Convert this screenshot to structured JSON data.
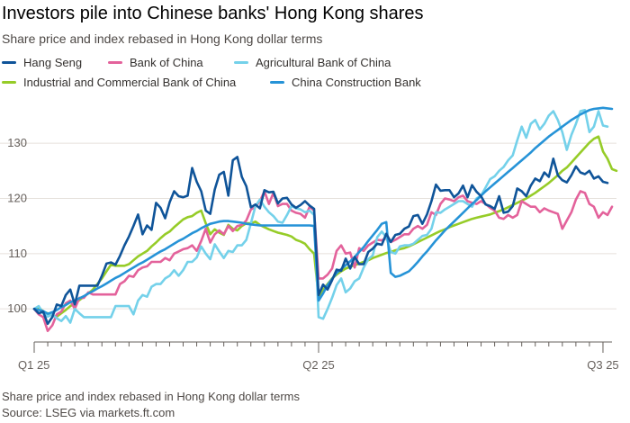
{
  "title": "Investors pile into Chinese banks' Hong Kong shares",
  "subtitle": "Share price and index rebased in Hong Kong dollar terms",
  "footer": {
    "note": "Share price and index rebased in Hong Kong dollar terms",
    "source": "Source: LSEG via markets.ft.com"
  },
  "chart_data": {
    "type": "line",
    "legend_placement": "top",
    "grid": "horizontal",
    "ylim": [
      94,
      138
    ],
    "yticks": [
      100,
      110,
      120,
      130
    ],
    "xticks": [
      {
        "label": "Q1 25",
        "x": 0
      },
      {
        "label": "Q2 25",
        "x": 63
      },
      {
        "label": "Q3 25",
        "x": 126
      }
    ],
    "xlim": [
      0,
      128
    ],
    "series": [
      {
        "name": "Hang Seng",
        "color": "#0f5499",
        "values": [
          100,
          99.2,
          99.5,
          97.3,
          98.5,
          100.8,
          100.5,
          102.5,
          103.5,
          100.8,
          104.2,
          104.2,
          104.2,
          104.2,
          104.2,
          106,
          108.2,
          108.4,
          108,
          109.6,
          111.5,
          113.1,
          115,
          117.1,
          113.5,
          115.1,
          114.3,
          119.2,
          118.3,
          116.4,
          119.3,
          121.3,
          120.4,
          120.2,
          120.5,
          125.5,
          123,
          121.3,
          117.8,
          117.2,
          121.6,
          124.3,
          124.8,
          120.5,
          126.9,
          127.5,
          123.9,
          122.2,
          118.4,
          118.9,
          118.2,
          121.5,
          121.1,
          121.2,
          119.1,
          120,
          120.1,
          118.9,
          118.3,
          118.8,
          119.5,
          118.7,
          118.1,
          102.5,
          104.4,
          103.5,
          105.2,
          107.1,
          106.9,
          109.1,
          107.3,
          109.4,
          108.1,
          108.1,
          110.3,
          110.9,
          111.8,
          111.6,
          113.6,
          112.1,
          113.4,
          113.6,
          114.5,
          114.9,
          116.8,
          117,
          115.4,
          117.1,
          119.5,
          122.5,
          121.4,
          121.5,
          121.5,
          120.2,
          120.9,
          122.3,
          120.2,
          122.4,
          121.2,
          120.4,
          118.9,
          118.6,
          118.1,
          120.4,
          117.4,
          117.6,
          118.6,
          121.8,
          121.3,
          120.4,
          122.3,
          123.6,
          123.1,
          124.7,
          123.9,
          127.2,
          124.2,
          123.3,
          122.9,
          124.2,
          125.8,
          124.7,
          124.4,
          125,
          123.6,
          124,
          123,
          122.8
        ]
      },
      {
        "name": "Bank of China",
        "color": "#e3629b",
        "values": [
          100,
          99,
          98.5,
          96,
          97,
          99,
          99.5,
          101,
          101.5,
          100,
          102,
          102,
          103,
          102.6,
          102.6,
          102.6,
          102.6,
          102.6,
          102.6,
          104.5,
          105,
          106,
          105.8,
          107,
          107.5,
          107.7,
          108.5,
          108.5,
          108.5,
          109.2,
          108.8,
          110,
          110.4,
          110.8,
          111,
          111.5,
          110.5,
          112.3,
          114.5,
          112,
          113.5,
          114.2,
          113.5,
          115,
          114.1,
          115,
          115.2,
          116,
          118,
          118.5,
          119.5,
          121.3,
          119,
          121,
          118.6,
          119,
          119,
          117.8,
          117.4,
          117.2,
          116.5,
          118.5,
          117.8,
          105.5,
          105.5,
          106.2,
          107.3,
          110.5,
          111.5,
          110,
          110.2,
          107.5,
          111,
          110.5,
          111.5,
          112,
          112.5,
          112.4,
          112.8,
          112.1,
          112.5,
          113,
          113.5,
          113.5,
          114.5,
          115,
          114.5,
          115.2,
          117.5,
          117,
          119,
          120,
          119.8,
          119.5,
          120.2,
          120.5,
          119.5,
          119.2,
          119,
          119.5,
          119,
          118.3,
          117.8,
          116.5,
          116.3,
          117,
          116.5,
          117,
          119.5,
          119,
          118.5,
          118.5,
          117.5,
          118.2,
          117.8,
          117.5,
          117.2,
          114.5,
          116,
          117.5,
          119.8,
          121.3,
          121,
          119,
          118.5,
          116.5,
          117.5,
          117,
          118.5
        ]
      },
      {
        "name": "Agricultural Bank of China",
        "color": "#74d1ea",
        "values": [
          100,
          100.5,
          99.2,
          98.6,
          99,
          98.3,
          97.8,
          98.7,
          97.5,
          100,
          99.2,
          98.5,
          98.5,
          98.5,
          98.5,
          98.5,
          98.5,
          98.5,
          100.5,
          100.5,
          100.5,
          100.5,
          99,
          101.5,
          102.5,
          102.2,
          104,
          104.5,
          104.5,
          105.5,
          106,
          107,
          106,
          107,
          108.5,
          108.5,
          109.3,
          111.3,
          110,
          109,
          111.7,
          110.4,
          109.2,
          110.5,
          110.3,
          111.5,
          111.5,
          112.5,
          115.5,
          118.6,
          119.8,
          118.5,
          117.5,
          116.8,
          115.8,
          115.6,
          117,
          118.6,
          118.2,
          118,
          117.5,
          117.8,
          117,
          98.5,
          98.2,
          100,
          102,
          104.3,
          105.5,
          103,
          103.7,
          105,
          105.5,
          107.5,
          109,
          109.7,
          113,
          114,
          113,
          110.3,
          110,
          111.3,
          111.5,
          111.5,
          111.8,
          112.5,
          113.2,
          113.4,
          114.5,
          117.5,
          117.4,
          118,
          118.5,
          119,
          119.5,
          119.5,
          119,
          118.5,
          120,
          120.5,
          122,
          123.5,
          124,
          125,
          125.7,
          126.9,
          127.8,
          130.5,
          133,
          131,
          133.5,
          134.2,
          132.5,
          133.5,
          135,
          135.8,
          134.2,
          132,
          128.8,
          131.5,
          133.5,
          135.8,
          136,
          132,
          133,
          135.8,
          133.2,
          133
        ]
      },
      {
        "name": "Industrial and Commercial Bank of China",
        "color": "#96cc28",
        "values": [
          100,
          100.3,
          99.5,
          99.2,
          98.8,
          98.6,
          99.2,
          99.8,
          100.5,
          101,
          101.6,
          102.2,
          102.8,
          103.5,
          104.5,
          105.5,
          106.8,
          108,
          107.8,
          107.8,
          107.8,
          108.1,
          108.8,
          109.5,
          110,
          110.5,
          111.3,
          112,
          112.8,
          113.5,
          114,
          114.8,
          115.5,
          116.2,
          116.6,
          116.8,
          117.4,
          117.8,
          115.5,
          113.5,
          114.4,
          113.8,
          113.4,
          115.2,
          114.5,
          114.2,
          115,
          115.5,
          115.5,
          115.8,
          115.2,
          114.8,
          114.4,
          114.1,
          113.8,
          113.6,
          113.4,
          113.1,
          112.5,
          112.2,
          111.8,
          110.8,
          110,
          102,
          103.5,
          104.5,
          105.5,
          106.2,
          106.8,
          107.3,
          107.6,
          107.9,
          108.2,
          108.5,
          108.8,
          109.2,
          109.5,
          109.8,
          110.1,
          110.3,
          110.6,
          110.8,
          111,
          111.3,
          111.7,
          112.1,
          112.5,
          112.9,
          113.3,
          113.7,
          114.1,
          114.4,
          114.8,
          115.1,
          115.4,
          115.7,
          116,
          116.3,
          116.5,
          116.7,
          116.9,
          117.1,
          117.4,
          117.7,
          118,
          118.4,
          118.8,
          119.2,
          119.6,
          120,
          120.5,
          121,
          121.6,
          122.2,
          122.8,
          123.5,
          124.2,
          125,
          125.6,
          126.5,
          127.4,
          128.3,
          129.2,
          130.1,
          130.8,
          131.2,
          128.5,
          127.2,
          125.3,
          125
        ]
      },
      {
        "name": "China Construction Bank",
        "color": "#2693d7",
        "values": [
          100,
          99.8,
          99.6,
          99.1,
          99.4,
          99.8,
          100.3,
          100.7,
          101.2,
          101.5,
          101.9,
          102.3,
          102.8,
          103.2,
          103.7,
          104.1,
          104.6,
          105.1,
          105.6,
          106,
          106.5,
          107,
          107.5,
          108,
          108.4,
          108.9,
          109.4,
          109.9,
          110.4,
          110.8,
          111.3,
          111.8,
          112.3,
          112.7,
          113.2,
          113.7,
          114.1,
          114.6,
          115,
          115.4,
          115.6,
          115.8,
          115.9,
          115.9,
          115.8,
          115.7,
          115.6,
          115.4,
          115.3,
          115.2,
          115.1,
          115.1,
          115.1,
          115.1,
          115.1,
          115.1,
          115.1,
          115.1,
          115.1,
          115.1,
          115.1,
          115.1,
          115,
          101.5,
          102.8,
          104.3,
          105.4,
          106.5,
          107.2,
          107.9,
          108.6,
          109.4,
          110.3,
          111.2,
          112.3,
          113.3,
          114.3,
          115.4,
          115.7,
          106.5,
          105.8,
          106,
          106.4,
          106.8,
          107.6,
          108.5,
          109.5,
          110.4,
          111.4,
          112.4,
          113.3,
          114.2,
          115,
          115.8,
          116.6,
          117.4,
          118.2,
          119,
          119.7,
          120.5,
          121.3,
          122,
          122.7,
          123.4,
          124.1,
          124.8,
          125.5,
          126.2,
          126.9,
          127.6,
          128.3,
          129.1,
          129.8,
          130.5,
          131.2,
          131.8,
          132.4,
          133,
          133.6,
          134.2,
          134.7,
          135.2,
          135.6,
          136,
          136.2,
          136.3,
          136.4,
          136.3,
          136.2
        ]
      }
    ]
  }
}
